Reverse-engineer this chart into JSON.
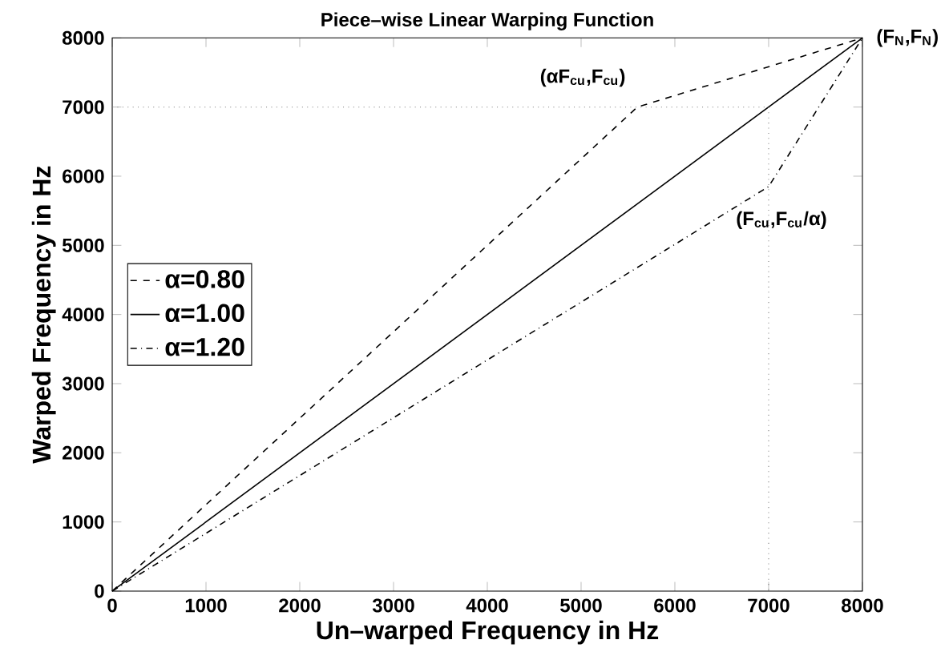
{
  "chart_data": {
    "type": "line",
    "title": "Piece–wise Linear Warping Function",
    "xlabel": "Un–warped Frequency in Hz",
    "ylabel": "Warped Frequency in Hz",
    "xlim": [
      0,
      8000
    ],
    "ylim": [
      0,
      8000
    ],
    "xticks": [
      0,
      1000,
      2000,
      3000,
      4000,
      5000,
      6000,
      7000,
      8000
    ],
    "yticks": [
      0,
      1000,
      2000,
      3000,
      4000,
      5000,
      6000,
      7000,
      8000
    ],
    "grid": false,
    "legend": "left",
    "marker": "none",
    "series": [
      {
        "name": "α=0.80",
        "color": "#000000",
        "line_style": "dashed",
        "x": [
          0,
          5600,
          8000
        ],
        "values": [
          0,
          7000,
          8000
        ]
      },
      {
        "name": "α=1.00",
        "color": "#000000",
        "line_style": "solid",
        "x": [
          0,
          8000
        ],
        "values": [
          0,
          8000
        ]
      },
      {
        "name": "α=1.20",
        "color": "#000000",
        "line_style": "dashdot",
        "x": [
          0,
          7000,
          8000
        ],
        "values": [
          0,
          5850,
          8000
        ]
      },
      {
        "color": "#808080",
        "line_style": "dotted",
        "x": [
          0,
          7000,
          7000
        ],
        "values": [
          7000,
          7000,
          0
        ]
      }
    ],
    "annotations": [
      {
        "text": "(αF$_{cu}$,F$_{cu}$)",
        "x": 5600,
        "y": 7000
      },
      {
        "text": "(F$_{N}$,F$_{N}$)",
        "x": 8000,
        "y": 8000
      },
      {
        "text": "(F$_{cu}$,F$_{cu}$/α)",
        "x": 7000,
        "y": 5850
      }
    ]
  }
}
